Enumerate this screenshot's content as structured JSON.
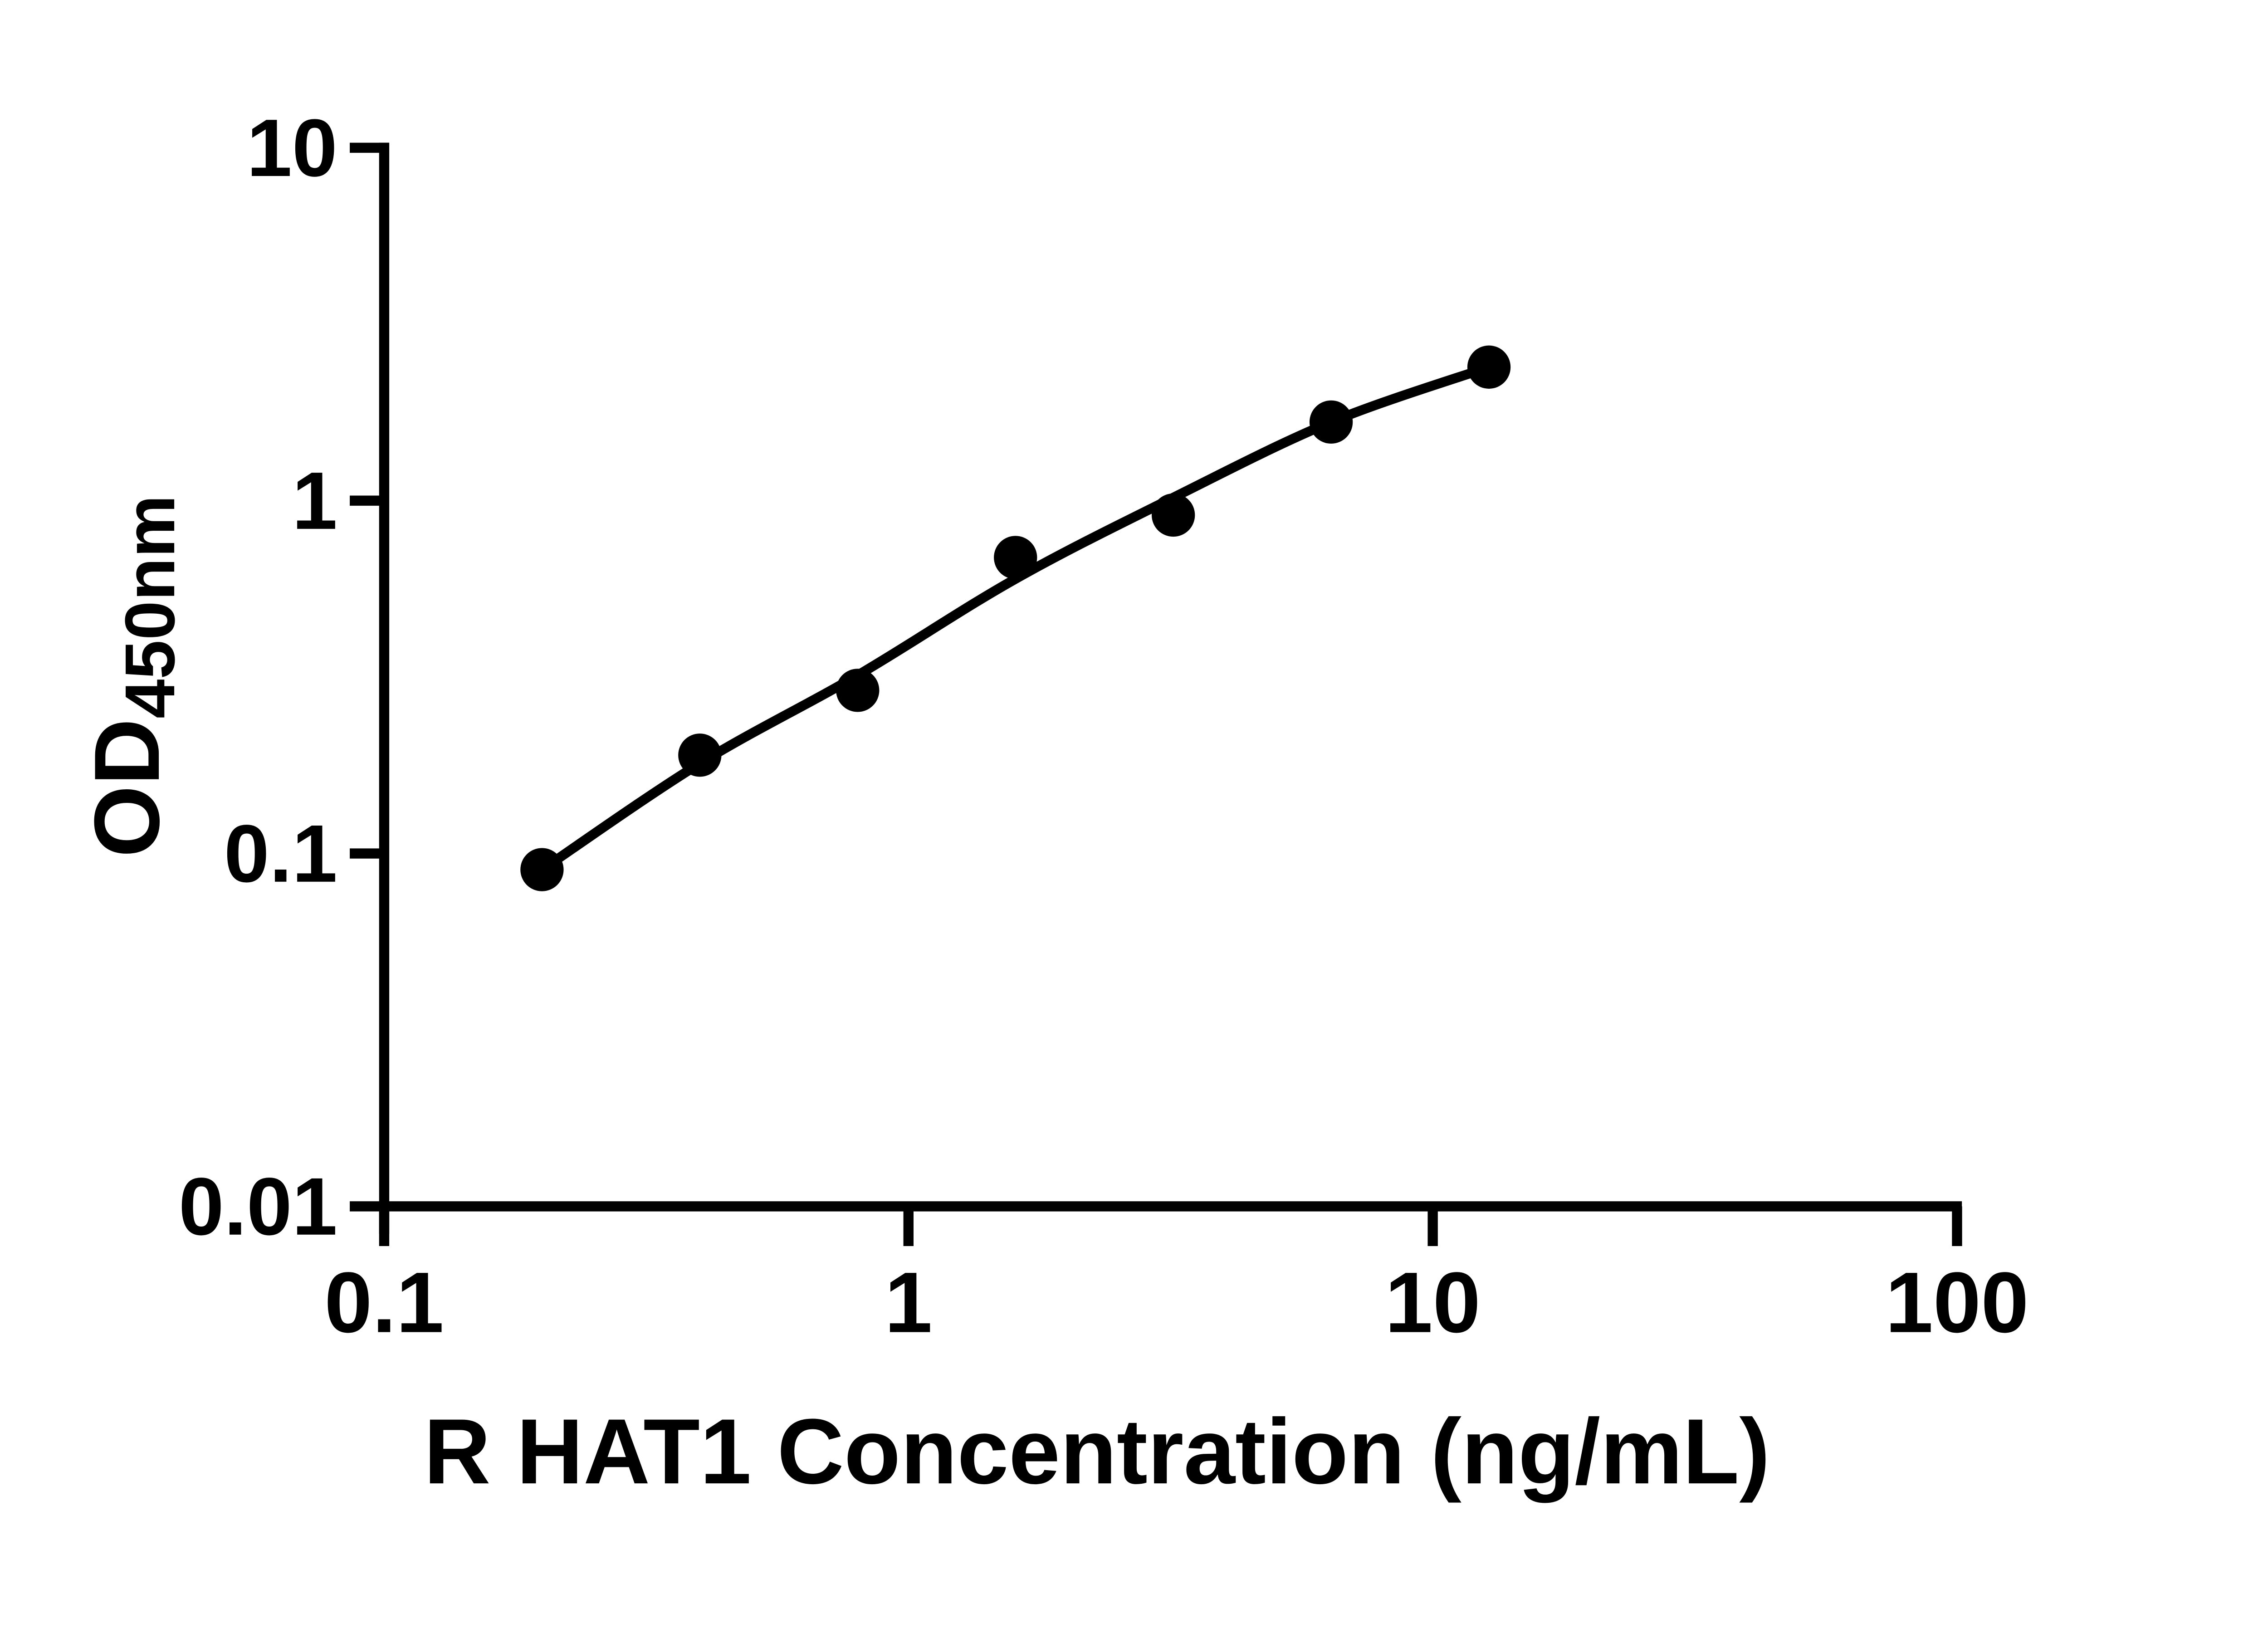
{
  "figure": {
    "background_color": "#ffffff",
    "foreground_color": "#000000"
  },
  "chart_data": {
    "type": "scatter",
    "title": "",
    "xlabel": "R HAT1 Concentration (ng/mL)",
    "ylabel_main": "OD",
    "ylabel_sub": "450nm",
    "x_scale": "log",
    "y_scale": "log",
    "xlim": [
      0.1,
      100
    ],
    "ylim": [
      0.01,
      10
    ],
    "grid": "off",
    "legend": "none",
    "x_ticks": [
      {
        "value": 0.1,
        "label": "0.1"
      },
      {
        "value": 1,
        "label": "1"
      },
      {
        "value": 10,
        "label": "10"
      },
      {
        "value": 100,
        "label": "100"
      }
    ],
    "y_ticks": [
      {
        "value": 10,
        "label": "10"
      },
      {
        "value": 1,
        "label": "1"
      },
      {
        "value": 0.1,
        "label": "0.1"
      },
      {
        "value": 0.01,
        "label": "0.01"
      }
    ],
    "series": [
      {
        "name": "standard-points",
        "marker": "filled-circle",
        "color": "#000000",
        "x": [
          0.2,
          0.4,
          0.8,
          1.6,
          3.2,
          6.4,
          12.8
        ],
        "od": [
          0.09,
          0.19,
          0.29,
          0.69,
          0.91,
          1.67,
          2.39
        ]
      }
    ],
    "fit_curve": {
      "name": "fitted-standard-curve",
      "color": "#000000",
      "x": [
        0.2,
        0.4,
        0.8,
        1.6,
        3.2,
        6.4,
        12.8
      ],
      "od": [
        0.09,
        0.18,
        0.32,
        0.6,
        1.02,
        1.67,
        2.39
      ]
    }
  }
}
